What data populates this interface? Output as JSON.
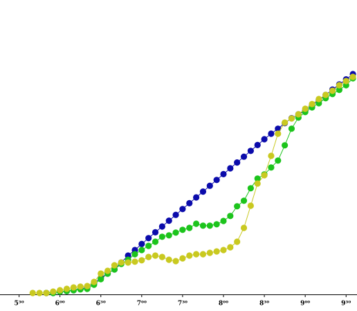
{
  "chart_data": {
    "type": "line",
    "x": [
      340,
      345,
      350,
      355,
      360,
      365,
      370,
      375,
      380,
      385,
      390,
      395,
      400,
      405,
      410,
      415,
      420,
      425,
      430,
      435,
      440,
      445,
      450,
      455,
      460,
      465,
      470,
      475,
      480,
      485,
      490,
      495,
      500,
      505,
      510,
      515,
      520,
      525,
      530,
      535,
      540,
      545,
      550,
      555,
      560,
      565,
      570,
      575
    ],
    "xlim": [
      316,
      578
    ],
    "xticks": [
      {
        "value": 330,
        "label": "5³⁰"
      },
      {
        "value": 360,
        "label": "6⁰⁰"
      },
      {
        "value": 390,
        "label": "6³⁰"
      },
      {
        "value": 420,
        "label": "7⁰⁰"
      },
      {
        "value": 450,
        "label": "7³⁰"
      },
      {
        "value": 480,
        "label": "8⁰⁰"
      },
      {
        "value": 510,
        "label": "8³⁰"
      },
      {
        "value": 540,
        "label": "9⁰⁰"
      },
      {
        "value": 570,
        "label": "9³⁰"
      }
    ],
    "ylim": [
      0,
      100
    ],
    "series": [
      {
        "color": "#0b0bab",
        "values": [
          null,
          null,
          0.5,
          0.5,
          1,
          1.2,
          1.5,
          2,
          2.5,
          4,
          6,
          7.5,
          9,
          11.5,
          14,
          16,
          18.2,
          20.3,
          22.4,
          24.5,
          26.6,
          28.7,
          30.8,
          32.9,
          35,
          37.1,
          39.2,
          41.3,
          43.4,
          45.5,
          47.6,
          49.7,
          51.8,
          53.9,
          56,
          58,
          59.8,
          61.8,
          63.6,
          65,
          66.3,
          68.2,
          70.1,
          72,
          73.9,
          75.8,
          77.6,
          79.5
        ]
      },
      {
        "color": "#1cc41c",
        "values": [
          null,
          null,
          0.5,
          0.5,
          1,
          1.2,
          1.5,
          1.8,
          2,
          3.5,
          5.5,
          7.5,
          9,
          11,
          12.5,
          14.5,
          16,
          17.5,
          19,
          20.8,
          21.3,
          22.3,
          23.3,
          24,
          25.5,
          24.8,
          24.8,
          25.3,
          26.5,
          28.3,
          31.8,
          33.8,
          38.3,
          41.8,
          43.3,
          45.8,
          48.3,
          53.8,
          59.8,
          63.8,
          65.8,
          67.5,
          69,
          70.8,
          72.3,
          73.8,
          75.5,
          78
        ]
      },
      {
        "color": "#c9c920",
        "values": [
          0.5,
          0.5,
          0.5,
          1,
          1.5,
          2,
          2.5,
          2.8,
          3,
          4.5,
          7.5,
          8.5,
          10.5,
          11.5,
          11.5,
          11.8,
          12.3,
          13.5,
          14,
          13.5,
          12.5,
          12,
          13,
          14,
          14.5,
          14.5,
          15,
          15.5,
          16,
          17,
          19,
          24,
          32,
          40,
          43,
          50,
          58,
          62,
          63.5,
          65,
          67,
          68.7,
          70.5,
          72,
          73.5,
          75.5,
          77,
          78.5
        ]
      }
    ]
  }
}
